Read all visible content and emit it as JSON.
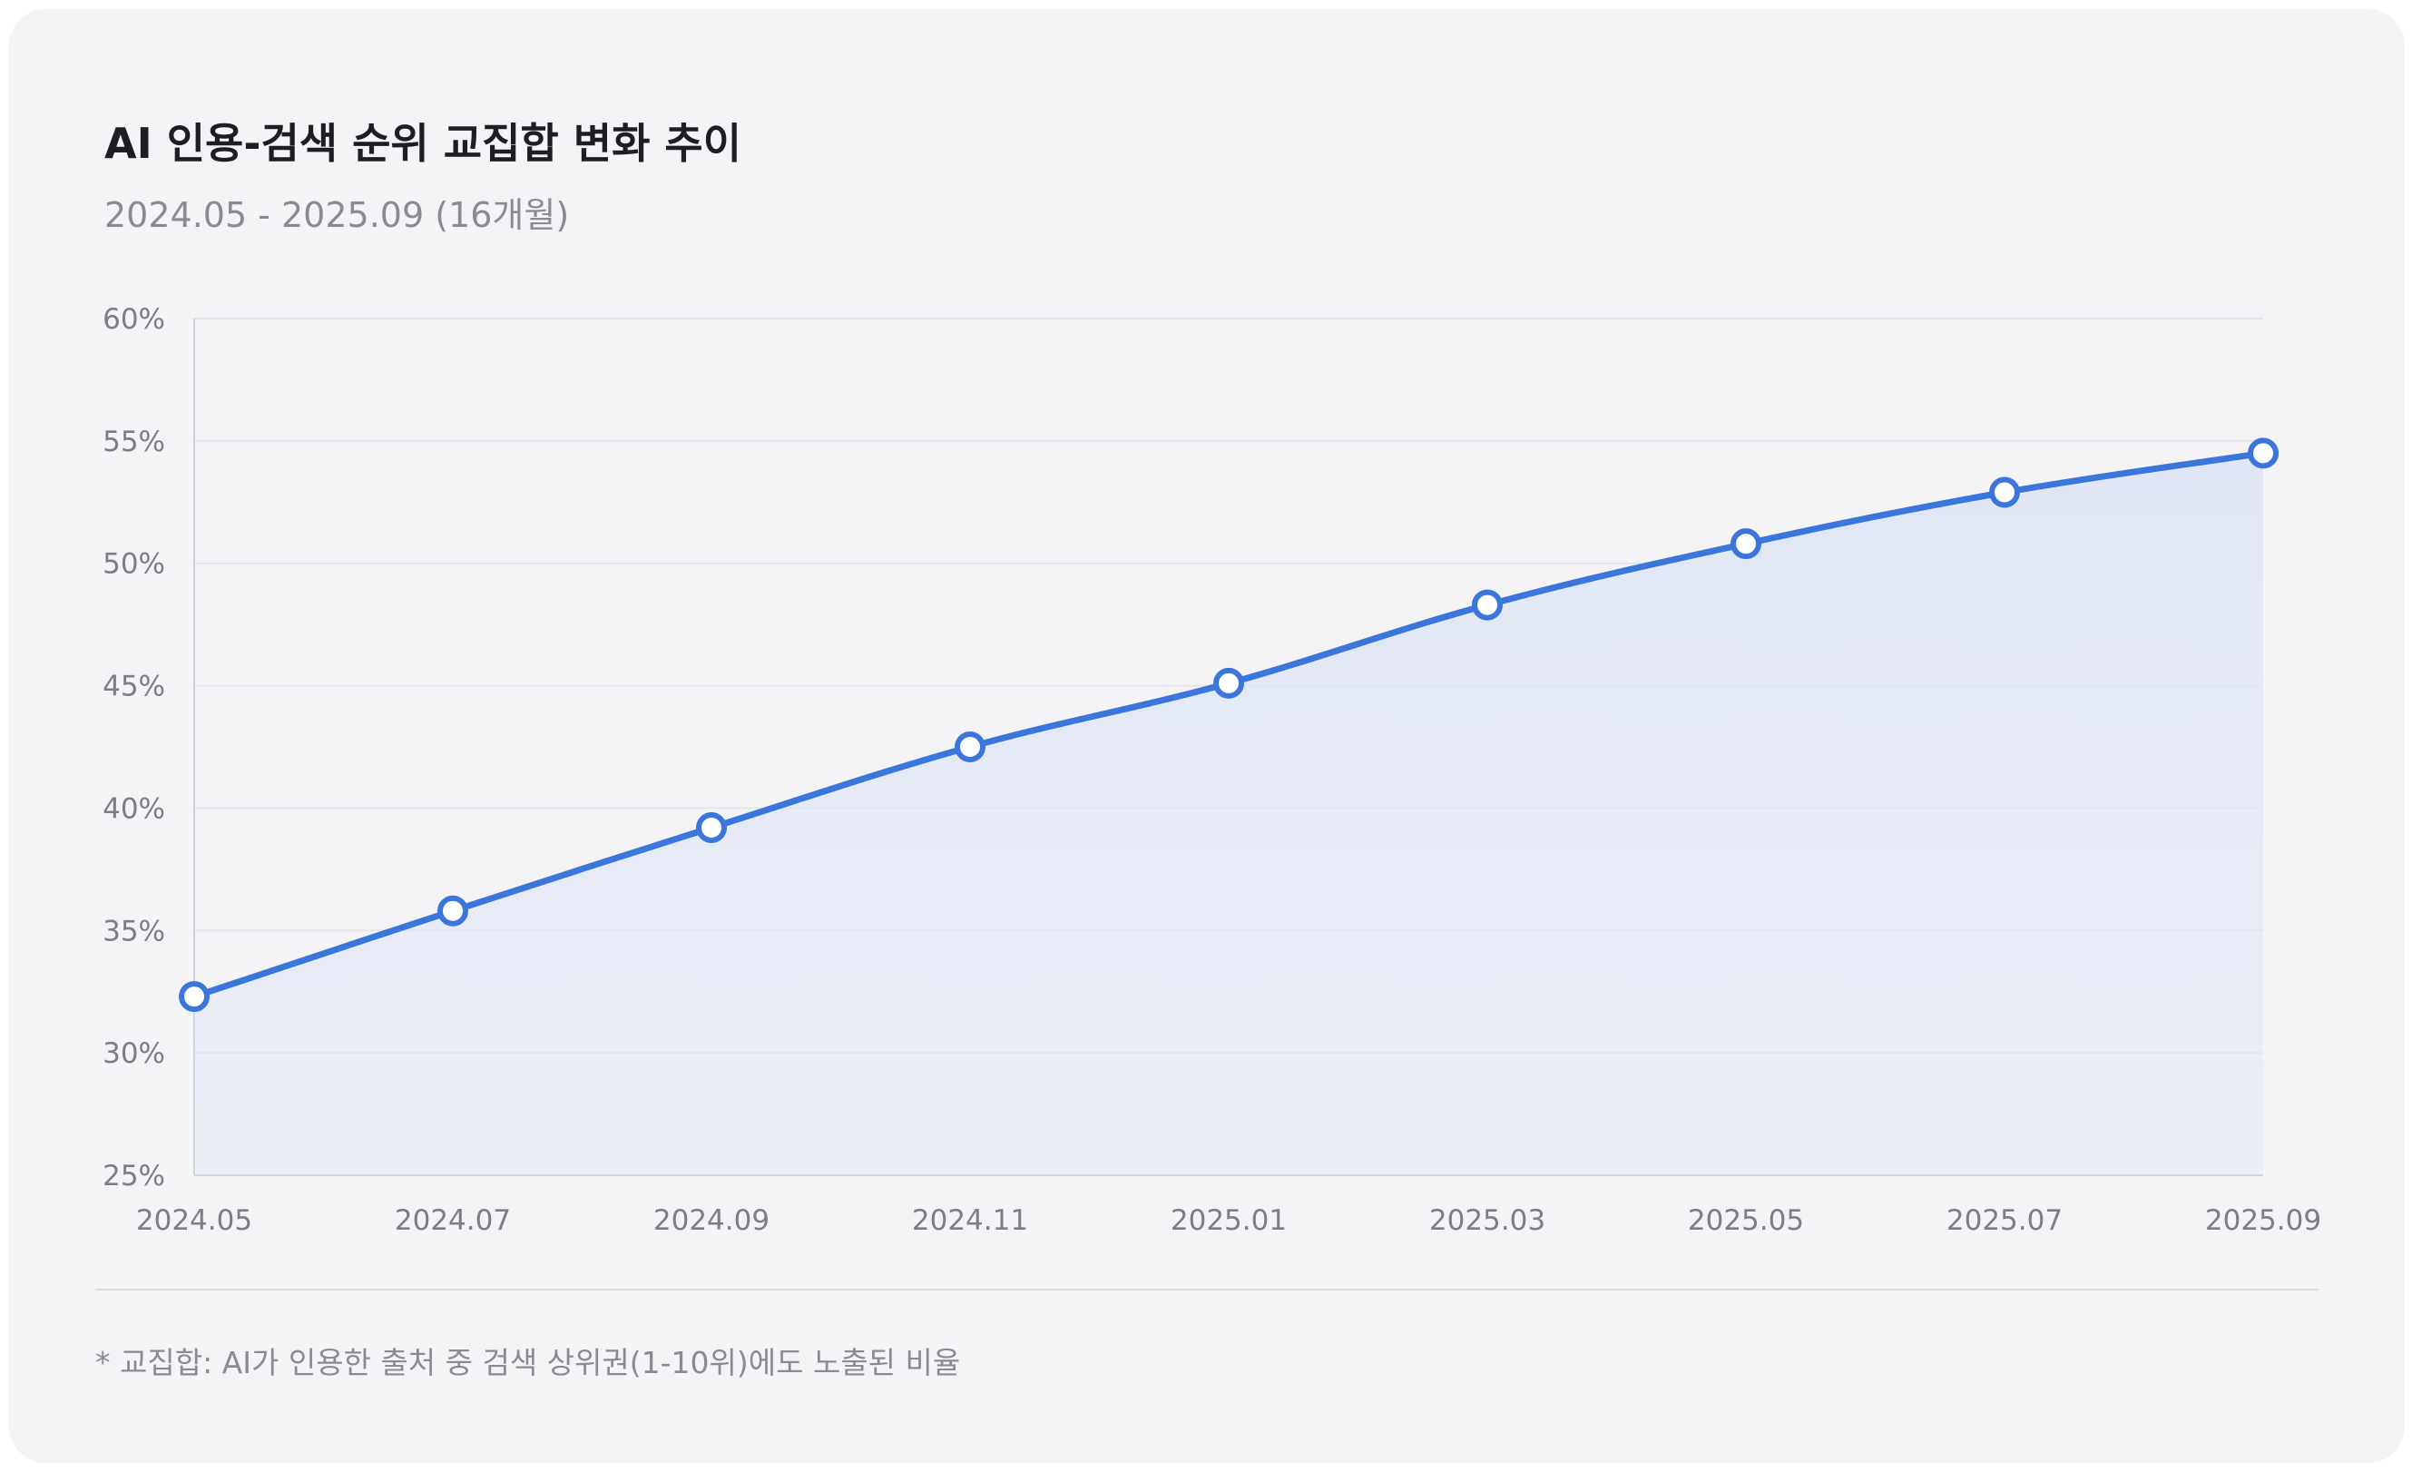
{
  "header": {
    "title": "AI 인용-검색 순위 교집합 변화 추이",
    "subtitle": "2024.05 - 2025.09 (16개월)"
  },
  "footnote": "* 교집합: AI가 인용한 출처 중 검색 상위권(1-10위)에도 노출된 비율",
  "colors": {
    "line": "#3a76dc",
    "area": "#dfe5f5",
    "grid": "#e4e4ea",
    "axis": "#cfcfd6"
  },
  "chart_data": {
    "type": "area",
    "title": "AI 인용-검색 순위 교집합 변화 추이",
    "subtitle": "2024.05 - 2025.09 (16개월)",
    "xlabel": "",
    "ylabel": "",
    "categories": [
      "2024.05",
      "2024.07",
      "2024.09",
      "2024.11",
      "2025.01",
      "2025.03",
      "2025.05",
      "2025.07",
      "2025.09"
    ],
    "values": [
      32.3,
      35.8,
      39.2,
      42.5,
      45.1,
      48.3,
      50.8,
      52.9,
      54.5
    ],
    "unit": "%",
    "ylim": [
      25,
      60
    ],
    "yticks": [
      25,
      30,
      35,
      40,
      45,
      50,
      55,
      60
    ],
    "ytick_labels": [
      "25%",
      "30%",
      "35%",
      "40%",
      "45%",
      "50%",
      "55%",
      "60%"
    ],
    "grid": "horizontal",
    "legend": "none",
    "markers": "hollow-circle",
    "curve": "smooth"
  }
}
